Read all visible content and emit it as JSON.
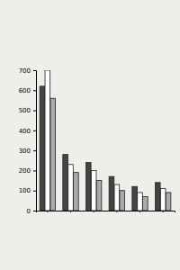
{
  "chart_data": {
    "type": "bar",
    "categories": [
      null,
      null,
      null,
      null,
      null,
      null
    ],
    "series": [
      {
        "color": "#444444",
        "values": [
          620,
          280,
          240,
          170,
          120,
          140
        ]
      },
      {
        "color": "#ffffff",
        "values": [
          700,
          230,
          200,
          130,
          90,
          110
        ]
      },
      {
        "color": "#aaaaaa",
        "values": [
          560,
          190,
          150,
          100,
          70,
          90
        ]
      }
    ],
    "ylim": [
      0,
      700
    ],
    "yticks": [
      0,
      100,
      200,
      300,
      400,
      500,
      600,
      700
    ],
    "grid": false
  }
}
